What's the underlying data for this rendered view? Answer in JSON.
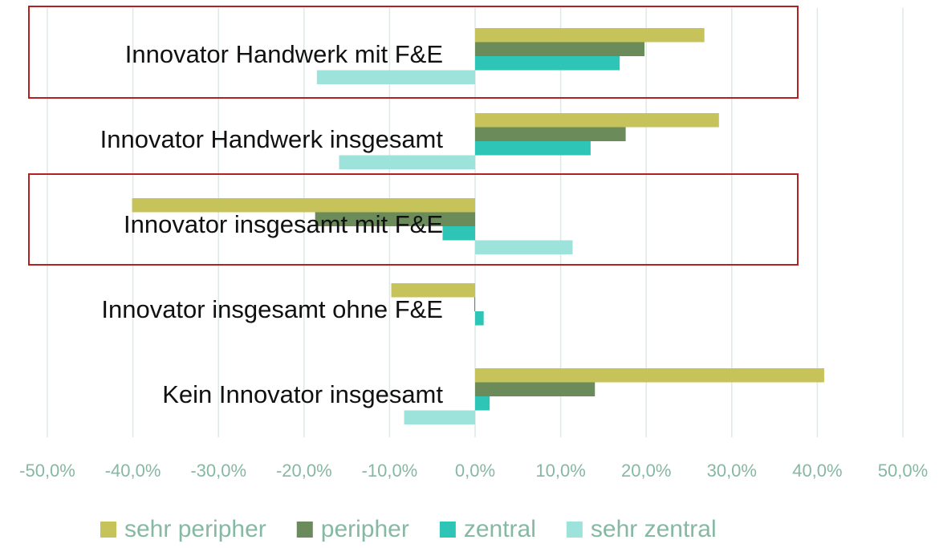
{
  "chart_data": {
    "type": "bar",
    "orientation": "horizontal",
    "categories": [
      "Innovator Handwerk mit F&E",
      "Innovator Handwerk insgesamt",
      "Innovator insgesamt mit F&E",
      "Innovator insgesamt ohne F&E",
      "Kein Innovator insgesamt"
    ],
    "series": [
      {
        "name": "sehr peripher",
        "color": "#c5c35a",
        "values": [
          26.8,
          28.5,
          -40.1,
          -9.8,
          40.8
        ]
      },
      {
        "name": "peripher",
        "color": "#6b8b5a",
        "values": [
          19.8,
          17.6,
          -18.7,
          -0.1,
          14.0
        ]
      },
      {
        "name": "zentral",
        "color": "#2ec4b6",
        "values": [
          16.9,
          13.5,
          -3.8,
          1.0,
          1.7
        ]
      },
      {
        "name": "sehr zentral",
        "color": "#9de3dc",
        "values": [
          -18.5,
          -15.9,
          11.4,
          0,
          -8.3
        ]
      }
    ],
    "xlim": [
      -50,
      50
    ],
    "xticks": [
      {
        "value": -50,
        "label": "-50,0%"
      },
      {
        "value": -40,
        "label": "-40,0%"
      },
      {
        "value": -30,
        "label": "-30,0%"
      },
      {
        "value": -20,
        "label": "-20,0%"
      },
      {
        "value": -10,
        "label": "-10,0%"
      },
      {
        "value": 0,
        "label": "0,0%"
      },
      {
        "value": 10,
        "label": "10,0%"
      },
      {
        "value": 20,
        "label": "20,0%"
      },
      {
        "value": 30,
        "label": "30,0%"
      },
      {
        "value": 40,
        "label": "40,0%"
      },
      {
        "value": 50,
        "label": "50,0%"
      }
    ],
    "grid": true
  }
}
